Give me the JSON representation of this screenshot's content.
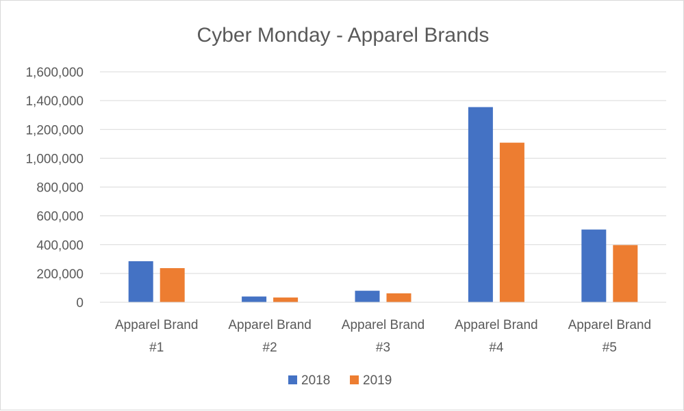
{
  "chart_data": {
    "type": "bar",
    "title": "Cyber Monday - Apparel Brands",
    "xlabel": "",
    "ylabel": "",
    "categories": [
      [
        "Apparel Brand",
        "#1"
      ],
      [
        "Apparel Brand",
        "#2"
      ],
      [
        "Apparel Brand",
        "#3"
      ],
      [
        "Apparel Brand",
        "#4"
      ],
      [
        "Apparel Brand",
        "#5"
      ]
    ],
    "series": [
      {
        "name": "2018",
        "color": "#4472C4",
        "values": [
          285000,
          40000,
          80000,
          1355000,
          505000
        ]
      },
      {
        "name": "2019",
        "color": "#ED7D31",
        "values": [
          237000,
          33000,
          62000,
          1108000,
          397000
        ]
      }
    ],
    "ylim": [
      0,
      1600000
    ],
    "yticks": [
      0,
      200000,
      400000,
      600000,
      800000,
      1000000,
      1200000,
      1400000,
      1600000
    ],
    "ytick_labels": [
      "0",
      "200,000",
      "400,000",
      "600,000",
      "800,000",
      "1,000,000",
      "1,200,000",
      "1,400,000",
      "1,600,000"
    ],
    "grid": true,
    "legend_position": "bottom-center",
    "gridline_color": "#d9d9d9"
  }
}
